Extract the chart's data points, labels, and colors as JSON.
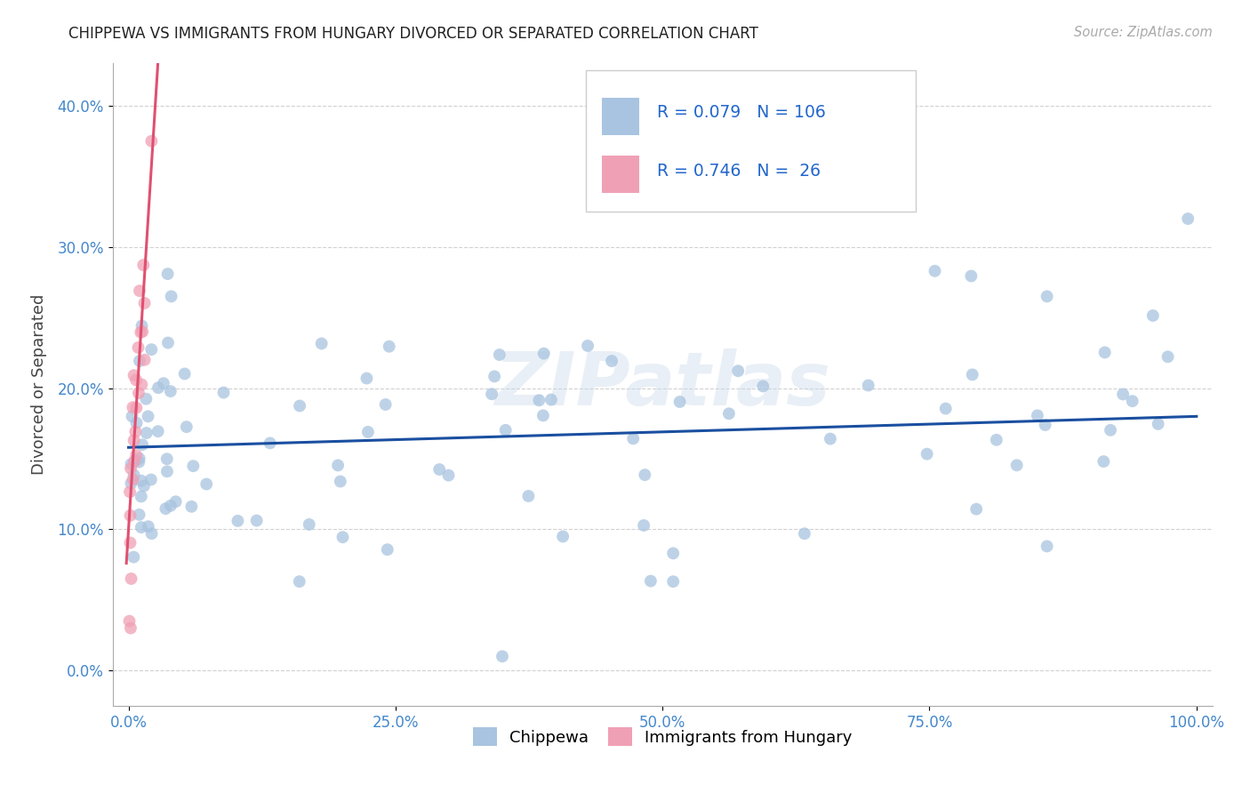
{
  "title": "CHIPPEWA VS IMMIGRANTS FROM HUNGARY DIVORCED OR SEPARATED CORRELATION CHART",
  "source": "Source: ZipAtlas.com",
  "ylabel": "Divorced or Separated",
  "legend_label1": "Chippewa",
  "legend_label2": "Immigrants from Hungary",
  "R1": 0.079,
  "N1": 106,
  "R2": 0.746,
  "N2": 26,
  "watermark": "ZIPatlas",
  "chippewa_color": "#a8c4e0",
  "hungary_color": "#f0a0b5",
  "line1_color": "#1a4fa0",
  "line2_color": "#e05070",
  "background_color": "#ffffff",
  "grid_color": "#cccccc",
  "chip_intercept": 0.158,
  "chip_slope": 0.022,
  "hung_intercept": 0.1,
  "hung_slope": 12.0,
  "xlim": [
    -0.015,
    1.015
  ],
  "ylim": [
    -0.025,
    0.43
  ],
  "xticks": [
    0.0,
    0.25,
    0.5,
    0.75,
    1.0
  ],
  "xtick_labels": [
    "0.0%",
    "25.0%",
    "50.0%",
    "75.0%",
    "100.0%"
  ],
  "yticks": [
    0.0,
    0.1,
    0.2,
    0.3,
    0.4
  ],
  "ytick_labels": [
    "0.0%",
    "10.0%",
    "20.0%",
    "30.0%",
    "40.0%"
  ]
}
